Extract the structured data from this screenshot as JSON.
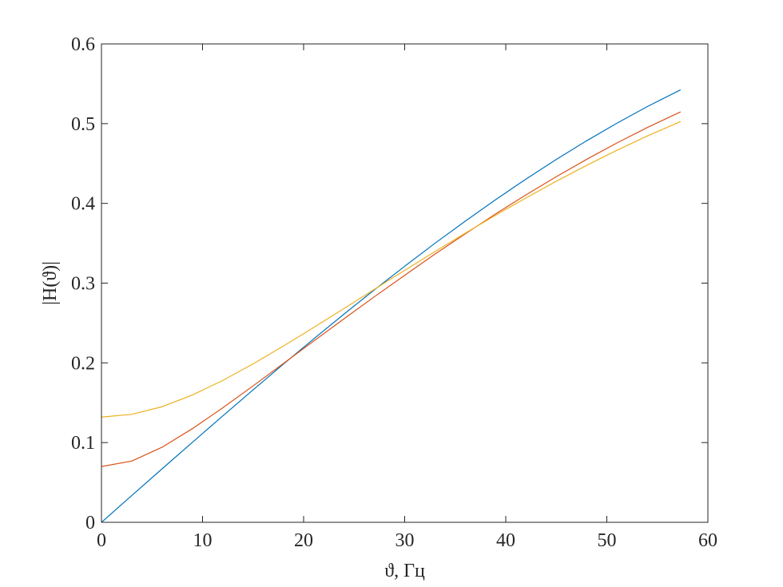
{
  "chart_data": {
    "type": "line",
    "title": "",
    "xlabel": "ϑ, Гц",
    "ylabel": "|H(ϑ)|",
    "xlim": [
      0,
      60
    ],
    "ylim": [
      0,
      0.6
    ],
    "xticks": [
      "0",
      "10",
      "20",
      "30",
      "40",
      "50",
      "60"
    ],
    "yticks": [
      "0",
      "0.1",
      "0.2",
      "0.3",
      "0.4",
      "0.5",
      "0.6"
    ],
    "grid": false,
    "box": true,
    "x": [
      0,
      3,
      6,
      9,
      12,
      15,
      18,
      21,
      24,
      27,
      30,
      33,
      36,
      39,
      42,
      45,
      48,
      51,
      54,
      57.3
    ],
    "series": [
      {
        "color": "#0072BD",
        "values": [
          0,
          0.0336,
          0.0671,
          0.1004,
          0.1334,
          0.1661,
          0.1984,
          0.2301,
          0.2612,
          0.2916,
          0.3211,
          0.35,
          0.3778,
          0.4047,
          0.4305,
          0.4551,
          0.4785,
          0.5006,
          0.5214,
          0.5425
        ]
      },
      {
        "color": "#D95319",
        "values": [
          0.07,
          0.0768,
          0.0942,
          0.1175,
          0.1436,
          0.1711,
          0.1992,
          0.2274,
          0.2553,
          0.2829,
          0.3098,
          0.3364,
          0.3619,
          0.3868,
          0.4107,
          0.4335,
          0.4552,
          0.4758,
          0.4951,
          0.5148
        ]
      },
      {
        "color": "#EDB120",
        "values": [
          0.132,
          0.1354,
          0.145,
          0.1597,
          0.1779,
          0.1987,
          0.2211,
          0.2444,
          0.2682,
          0.2922,
          0.316,
          0.3396,
          0.3627,
          0.3851,
          0.4068,
          0.4278,
          0.4477,
          0.4666,
          0.4845,
          0.5026
        ]
      }
    ]
  }
}
